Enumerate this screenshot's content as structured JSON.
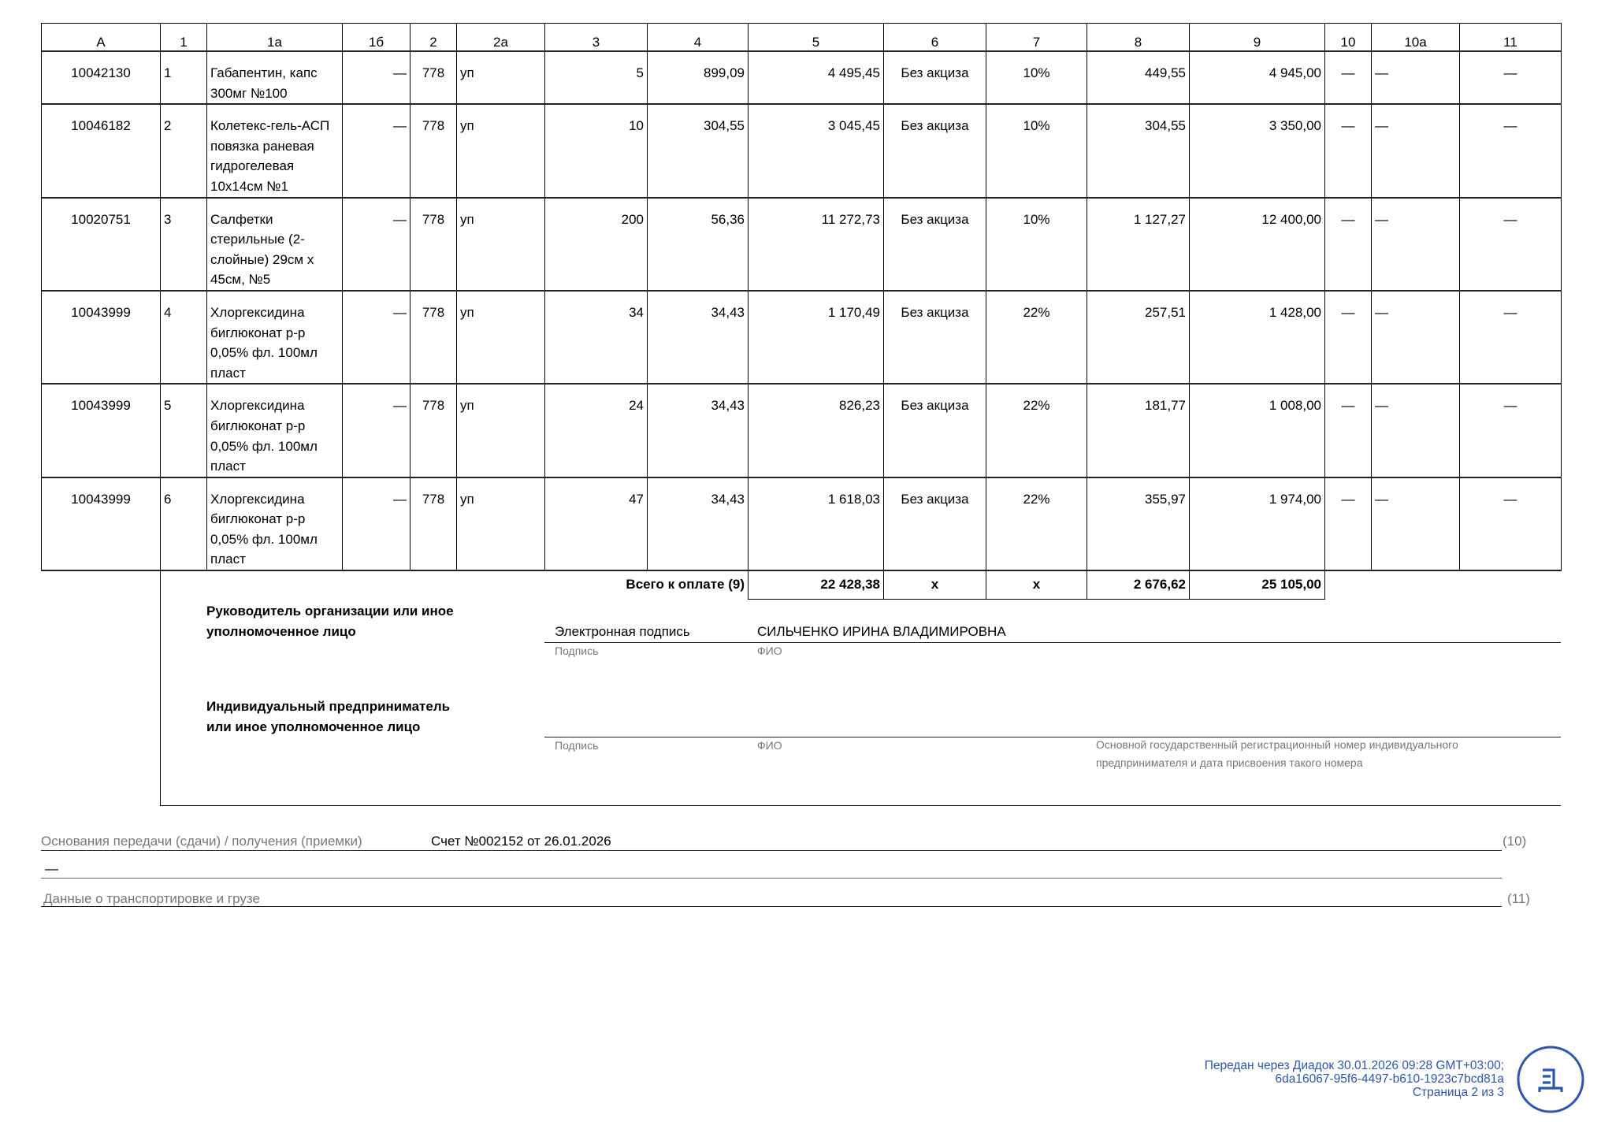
{
  "table": {
    "headers": [
      "А",
      "1",
      "1а",
      "1б",
      "2",
      "2а",
      "3",
      "4",
      "5",
      "6",
      "7",
      "8",
      "9",
      "10",
      "10а",
      "11"
    ],
    "rows": [
      {
        "code": "10042130",
        "num": "1",
        "name": "Габапентин, капс 300мг №100",
        "c1b": "—",
        "c2": "778",
        "c2a": "уп",
        "qty": "5",
        "price": "899,09",
        "cost": "4 495,45",
        "excise": "Без акциза",
        "rate": "10%",
        "tax": "449,55",
        "total": "4 945,00",
        "c10": "—",
        "c10a": "—",
        "c11": "—"
      },
      {
        "code": "10046182",
        "num": "2",
        "name": "Колетекс-гель-АСП повязка раневая гидрогелевая 10х14см №1",
        "c1b": "—",
        "c2": "778",
        "c2a": "уп",
        "qty": "10",
        "price": "304,55",
        "cost": "3 045,45",
        "excise": "Без акциза",
        "rate": "10%",
        "tax": "304,55",
        "total": "3 350,00",
        "c10": "—",
        "c10a": "—",
        "c11": "—"
      },
      {
        "code": "10020751",
        "num": "3",
        "name": "Салфетки стерильные (2-слойные) 29см х 45см,  №5",
        "c1b": "—",
        "c2": "778",
        "c2a": "уп",
        "qty": "200",
        "price": "56,36",
        "cost": "11 272,73",
        "excise": "Без акциза",
        "rate": "10%",
        "tax": "1 127,27",
        "total": "12 400,00",
        "c10": "—",
        "c10a": "—",
        "c11": "—"
      },
      {
        "code": "10043999",
        "num": "4",
        "name": "Хлоргексидина биглюконат р-р 0,05% фл. 100мл пласт",
        "c1b": "—",
        "c2": "778",
        "c2a": "уп",
        "qty": "34",
        "price": "34,43",
        "cost": "1 170,49",
        "excise": "Без акциза",
        "rate": "22%",
        "tax": "257,51",
        "total": "1 428,00",
        "c10": "—",
        "c10a": "—",
        "c11": "—"
      },
      {
        "code": "10043999",
        "num": "5",
        "name": "Хлоргексидина биглюконат р-р 0,05% фл. 100мл пласт",
        "c1b": "—",
        "c2": "778",
        "c2a": "уп",
        "qty": "24",
        "price": "34,43",
        "cost": "826,23",
        "excise": "Без акциза",
        "rate": "22%",
        "tax": "181,77",
        "total": "1 008,00",
        "c10": "—",
        "c10a": "—",
        "c11": "—"
      },
      {
        "code": "10043999",
        "num": "6",
        "name": "Хлоргексидина биглюконат р-р 0,05% фл. 100мл пласт",
        "c1b": "—",
        "c2": "778",
        "c2a": "уп",
        "qty": "47",
        "price": "34,43",
        "cost": "1 618,03",
        "excise": "Без акциза",
        "rate": "22%",
        "tax": "355,97",
        "total": "1 974,00",
        "c10": "—",
        "c10a": "—",
        "c11": "—"
      }
    ],
    "totals": {
      "label": "Всего к оплате (9)",
      "cost": "22 428,38",
      "excise": "x",
      "rate": "x",
      "tax": "2 676,62",
      "total": "25 105,00"
    }
  },
  "signatures": {
    "head_label": "Руководитель организации или иное уполномоченное лицо",
    "head_sign": "Электронная подпись",
    "head_name": "СИЛЬЧЕНКО ИРИНА ВЛАДИМИРОВНА",
    "sign_hint": "Подпись",
    "name_hint": "ФИО",
    "ip_label": "Индивидуальный предприниматель или иное уполномоченное лицо",
    "ogrn_hint": "Основной государственный регистрационный номер индивидуального предпринимателя и дата присвоения такого номера"
  },
  "bottom": {
    "basis_label": "Основания передачи (сдачи) / получения (приемки)",
    "basis_value": "Счет №002152 от 26.01.2026",
    "basis_code": "(10)",
    "dash": "—",
    "transport_label": "Данные о транспортировке и грузе",
    "transport_code": "(11)"
  },
  "footer": {
    "line1": "Передан через Диадок 30.01.2026 09:28 GMT+03:00;",
    "line2": "6da16067-95f6-4497-b610-1923c7bcd81a",
    "line3": "Страница 2 из 3",
    "logo_icon": "diadoc-logo-icon",
    "accent": "#2a56b8"
  }
}
